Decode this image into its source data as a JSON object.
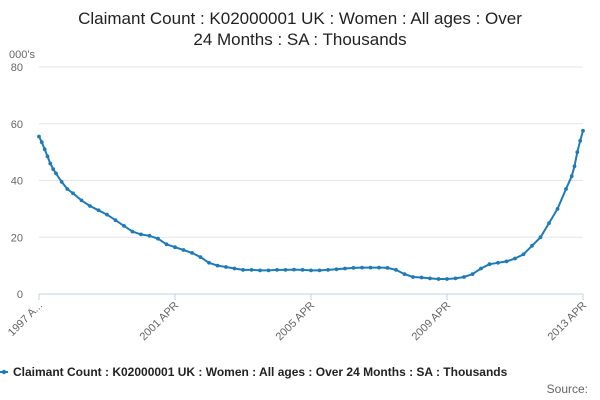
{
  "chart_data": {
    "type": "line",
    "title_lines": [
      "Claimant Count : K02000001 UK : Women : All ages : Over",
      "24 Months : SA : Thousands"
    ],
    "ylabel": "000's",
    "xlabel": "",
    "ylim": [
      0,
      80
    ],
    "yticks": [
      0,
      20,
      40,
      60,
      80
    ],
    "x_tick_labels": [
      "1997 A...",
      "2001 APR",
      "2005 APR",
      "2009 APR",
      "2013 APR"
    ],
    "grid": true,
    "legend_position": "bottom",
    "legend_label": "Claimant Count : K02000001 UK : Women : All ages : Over 24 Months : SA : Thousands",
    "source_label": "Source:",
    "colors": {
      "series": "#1f7bb6"
    },
    "series": [
      {
        "name": "Claimant Count : K02000001 UK : Women : All ages : Over 24 Months : SA : Thousands",
        "x": [
          "1997-04",
          "1997-05",
          "1997-06",
          "1997-07",
          "1997-08",
          "1997-09",
          "1997-10",
          "1997-12",
          "1998-02",
          "1998-04",
          "1998-07",
          "1998-10",
          "1999-01",
          "1999-04",
          "1999-07",
          "1999-10",
          "2000-01",
          "2000-04",
          "2000-07",
          "2000-10",
          "2001-01",
          "2001-04",
          "2001-07",
          "2001-10",
          "2002-01",
          "2002-04",
          "2002-07",
          "2002-10",
          "2003-01",
          "2003-04",
          "2003-07",
          "2003-10",
          "2004-01",
          "2004-04",
          "2004-07",
          "2004-10",
          "2005-01",
          "2005-04",
          "2005-07",
          "2005-10",
          "2006-01",
          "2006-04",
          "2006-07",
          "2006-10",
          "2007-01",
          "2007-04",
          "2007-07",
          "2007-10",
          "2008-01",
          "2008-04",
          "2008-07",
          "2008-10",
          "2009-01",
          "2009-04",
          "2009-07",
          "2009-10",
          "2010-01",
          "2010-04",
          "2010-07",
          "2010-10",
          "2011-01",
          "2011-04",
          "2011-07",
          "2011-10",
          "2012-01",
          "2012-04",
          "2012-07",
          "2012-10",
          "2012-12",
          "2013-01",
          "2013-02",
          "2013-03",
          "2013-04"
        ],
        "values": [
          55.5,
          53.5,
          51,
          48.5,
          46,
          44,
          42.5,
          39.5,
          37,
          35.5,
          33,
          31,
          29.5,
          28,
          26,
          24,
          22,
          21,
          20.5,
          19.5,
          17.5,
          16.5,
          15.5,
          14.5,
          13,
          11,
          10,
          9.5,
          9,
          8.5,
          8.5,
          8.3,
          8.3,
          8.5,
          8.5,
          8.6,
          8.5,
          8.3,
          8.3,
          8.5,
          8.7,
          9,
          9.2,
          9.3,
          9.3,
          9.3,
          9.2,
          8.5,
          7,
          6,
          5.8,
          5.5,
          5.3,
          5.3,
          5.5,
          6,
          7,
          9,
          10.5,
          11,
          11.5,
          12.5,
          14,
          17,
          20,
          25,
          30,
          37,
          41.5,
          45,
          50,
          54,
          57.5
        ]
      }
    ]
  }
}
